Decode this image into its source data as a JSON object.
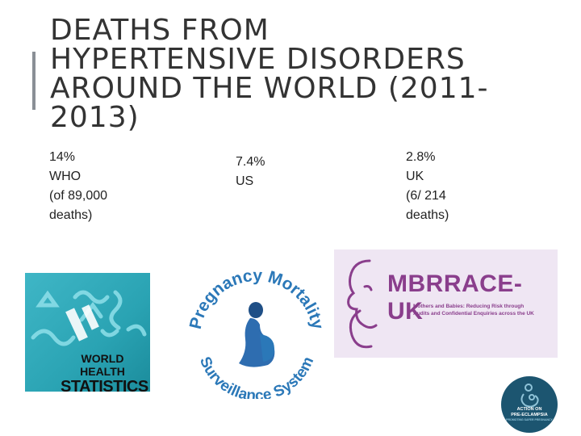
{
  "slide": {
    "title_lines": [
      "DEATHS FROM",
      "HYPERTENSIVE DISORDERS",
      "AROUND THE WORLD (2011-",
      "2013)"
    ],
    "stats": {
      "who": [
        "14%",
        "WHO",
        "(of 89,000",
        "deaths)"
      ],
      "us": [
        "7.4%",
        "US"
      ],
      "uk": [
        "2.8%",
        "UK",
        "(6/ 214",
        "deaths)"
      ]
    },
    "logos": {
      "who": {
        "line1": "WORLD HEALTH",
        "line2": "STATISTICS"
      },
      "pmss": {
        "top_arc": "Pregnancy Mortality",
        "bottom_arc": "Surveillance System"
      },
      "mbrrace": {
        "name": "MBRRACE-UK",
        "tagline": [
          "Mothers and Babies: Reducing Risk through",
          "Audits and Confidential Enquiries across the UK"
        ]
      },
      "apec": {
        "line1": "ACTION ON",
        "line2": "PRE-ECLAMPSIA",
        "line3": "PROMOTING SAFER PREGNANCY"
      }
    },
    "colors": {
      "who_teal": "#2aa3b3",
      "pmss_blue": "#2b78b8",
      "mbrrace_purple": "#8a3e8c",
      "apec_navy": "#1c5570"
    }
  }
}
